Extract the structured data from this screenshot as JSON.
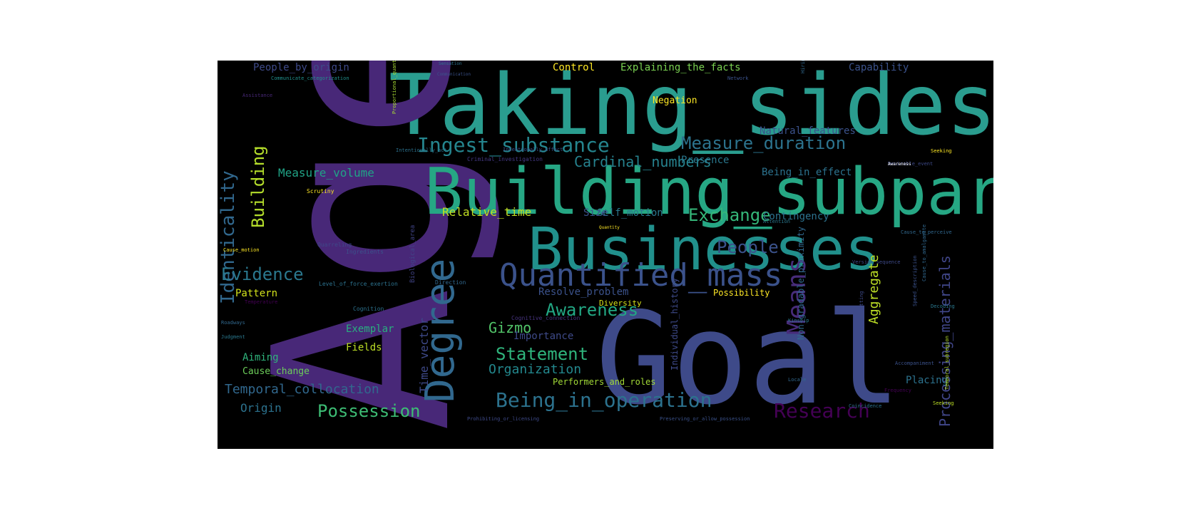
{
  "wordcloud": {
    "background": "#000000",
    "words": [
      {
        "text": "Taking_sides",
        "color": "#2a9d8f"
      },
      {
        "text": "Age",
        "color": "#482878"
      },
      {
        "text": "Goal",
        "color": "#3e4a89"
      },
      {
        "text": "Building_subparts",
        "color": "#26a784"
      },
      {
        "text": "Businesses",
        "color": "#21908c"
      },
      {
        "text": "Degree",
        "color": "#31688e"
      },
      {
        "text": "Quantified_mass",
        "color": "#3b528b"
      },
      {
        "text": "Means",
        "color": "#472c7a"
      },
      {
        "text": "Identicality",
        "color": "#31688e"
      },
      {
        "text": "Building",
        "color": "#b5de2b"
      },
      {
        "text": "Ingest_substance",
        "color": "#25858e"
      },
      {
        "text": "Measure_duration",
        "color": "#2c738e"
      },
      {
        "text": "Cardinal_numbers",
        "color": "#26828e"
      },
      {
        "text": "Exchange",
        "color": "#35b779"
      },
      {
        "text": "People",
        "color": "#3b528b"
      },
      {
        "text": "Evidence",
        "color": "#2a788e"
      },
      {
        "text": "Awareness",
        "color": "#22a884"
      },
      {
        "text": "Statement",
        "color": "#2fb47c"
      },
      {
        "text": "Being_in_operation",
        "color": "#2c728e"
      },
      {
        "text": "Possession",
        "color": "#3dbc74"
      },
      {
        "text": "Research",
        "color": "#440154"
      },
      {
        "text": "Temporal_collocation",
        "color": "#31688e"
      },
      {
        "text": "Processing_materials",
        "color": "#404688"
      },
      {
        "text": "Aggregate",
        "color": "#bddf26"
      },
      {
        "text": "Gizmo",
        "color": "#52c569"
      },
      {
        "text": "Organization",
        "color": "#23888e"
      },
      {
        "text": "Time_vector",
        "color": "#3e4989"
      },
      {
        "text": "Measure_volume",
        "color": "#20a386"
      },
      {
        "text": "Relative_time",
        "color": "#c2df23"
      },
      {
        "text": "Explaining_the_facts",
        "color": "#7ad151"
      },
      {
        "text": "Control",
        "color": "#fde725"
      },
      {
        "text": "Capability",
        "color": "#3b528b"
      },
      {
        "text": "People_by_origin",
        "color": "#3e4a89"
      },
      {
        "text": "Being_in_effect",
        "color": "#2c728e"
      },
      {
        "text": "Natural_features",
        "color": "#3b528b"
      },
      {
        "text": "Self_motion",
        "color": "#2a788e"
      },
      {
        "text": "Presence",
        "color": "#2a788e"
      },
      {
        "text": "Contingency",
        "color": "#2c728e"
      },
      {
        "text": "Size",
        "color": "#3b528b"
      },
      {
        "text": "Negation",
        "color": "#fde725"
      },
      {
        "text": "Pattern",
        "color": "#d2e21b"
      },
      {
        "text": "Exemplar",
        "color": "#29af7f"
      },
      {
        "text": "Fields",
        "color": "#bddf26"
      },
      {
        "text": "Aiming",
        "color": "#2fb47c"
      },
      {
        "text": "Cause_change",
        "color": "#6ccd5a"
      },
      {
        "text": "Origin",
        "color": "#2c728e"
      },
      {
        "text": "Importance",
        "color": "#3e4a89"
      },
      {
        "text": "Resolve_problem",
        "color": "#3b528b"
      },
      {
        "text": "Placing",
        "color": "#2c728e"
      },
      {
        "text": "Performers_and_roles",
        "color": "#a2da37"
      },
      {
        "text": "Possibility",
        "color": "#fde725"
      },
      {
        "text": "Diversity",
        "color": "#d8e219"
      },
      {
        "text": "Individual_history",
        "color": "#3e4a89"
      },
      {
        "text": "Non-gradable_proximity",
        "color": "#31688e"
      },
      {
        "text": "Ingredients",
        "color": "#3b528b"
      },
      {
        "text": "Quarreling",
        "color": "#3e4989"
      },
      {
        "text": "Direction",
        "color": "#31688e"
      },
      {
        "text": "Cognition",
        "color": "#2c728e"
      },
      {
        "text": "Biological_area",
        "color": "#414487"
      },
      {
        "text": "Cognitive_connection",
        "color": "#46337e"
      },
      {
        "text": "Criminal_investigation",
        "color": "#443983"
      },
      {
        "text": "Scrutiny",
        "color": "#fde725"
      },
      {
        "text": "Cause_motion",
        "color": "#fde725"
      },
      {
        "text": "Level_of_force_exertion",
        "color": "#2c728e"
      },
      {
        "text": "Roadways",
        "color": "#31688e"
      },
      {
        "text": "Judgment",
        "color": "#2a788e"
      },
      {
        "text": "Communicate_categorization",
        "color": "#21908c"
      },
      {
        "text": "Sensation",
        "color": "#2c728e"
      },
      {
        "text": "Communication",
        "color": "#3b528b"
      },
      {
        "text": "Proportional_quantity",
        "color": "#a8db34"
      },
      {
        "text": "Intentionally_act",
        "color": "#2c728e"
      },
      {
        "text": "Intentionally_affect",
        "color": "#3b528b"
      },
      {
        "text": "Assistance",
        "color": "#482878"
      },
      {
        "text": "Temperature",
        "color": "#440154"
      },
      {
        "text": "Network",
        "color": "#3b528b"
      },
      {
        "text": "Hiring",
        "color": "#31688e"
      },
      {
        "text": "Desirable_event",
        "color": "#3e4a89"
      },
      {
        "text": "Seeking",
        "color": "#fde725"
      },
      {
        "text": "Awareness",
        "color": "#ffffff"
      },
      {
        "text": "Attention",
        "color": "#2a788e"
      },
      {
        "text": "Cause_to_perceive",
        "color": "#31688e"
      },
      {
        "text": "Version_sequence",
        "color": "#3e4a89"
      },
      {
        "text": "Cause_to_amalgamate",
        "color": "#31688e"
      },
      {
        "text": "Quantity",
        "color": "#fde725"
      },
      {
        "text": "Speed_description",
        "color": "#3b528b"
      },
      {
        "text": "Preventing_or_letting",
        "color": "#3e4a89"
      },
      {
        "text": "Locale",
        "color": "#31688e"
      },
      {
        "text": "Accompaniment",
        "color": "#3b528b"
      },
      {
        "text": "Frequency",
        "color": "#440154"
      },
      {
        "text": "Temporal_subregion",
        "color": "#b5de2b"
      },
      {
        "text": "Seeking",
        "color": "#bddf26"
      },
      {
        "text": "Prohibiting_or_licensing",
        "color": "#3e4a89"
      },
      {
        "text": "Preserving_or_allow_possession",
        "color": "#3b528b"
      },
      {
        "text": "Coincidence",
        "color": "#2c728e"
      },
      {
        "text": "Decoding",
        "color": "#2a788e"
      },
      {
        "text": "Kinship",
        "color": "#2a788e"
      }
    ]
  }
}
